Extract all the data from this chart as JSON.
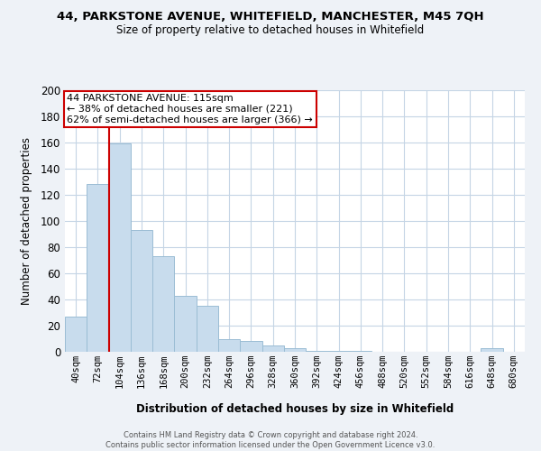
{
  "title": "44, PARKSTONE AVENUE, WHITEFIELD, MANCHESTER, M45 7QH",
  "subtitle": "Size of property relative to detached houses in Whitefield",
  "xlabel": "Distribution of detached houses by size in Whitefield",
  "ylabel": "Number of detached properties",
  "bar_labels": [
    "40sqm",
    "72sqm",
    "104sqm",
    "136sqm",
    "168sqm",
    "200sqm",
    "232sqm",
    "264sqm",
    "296sqm",
    "328sqm",
    "360sqm",
    "392sqm",
    "424sqm",
    "456sqm",
    "488sqm",
    "520sqm",
    "552sqm",
    "584sqm",
    "616sqm",
    "648sqm",
    "680sqm"
  ],
  "bar_values": [
    27,
    128,
    159,
    93,
    73,
    43,
    35,
    10,
    8,
    5,
    3,
    1,
    1,
    1,
    0,
    0,
    0,
    0,
    0,
    3,
    0
  ],
  "bar_color": "#c8dced",
  "bar_edge_color": "#9bbdd4",
  "vline_color": "#cc0000",
  "annotation_text": "44 PARKSTONE AVENUE: 115sqm\n← 38% of detached houses are smaller (221)\n62% of semi-detached houses are larger (366) →",
  "annotation_box_color": "#ffffff",
  "annotation_box_edge": "#cc0000",
  "ylim": [
    0,
    200
  ],
  "yticks": [
    0,
    20,
    40,
    60,
    80,
    100,
    120,
    140,
    160,
    180,
    200
  ],
  "footnote": "Contains HM Land Registry data © Crown copyright and database right 2024.\nContains public sector information licensed under the Open Government Licence v3.0.",
  "bg_color": "#eef2f7",
  "plot_bg_color": "#ffffff",
  "grid_color": "#c5d5e5"
}
